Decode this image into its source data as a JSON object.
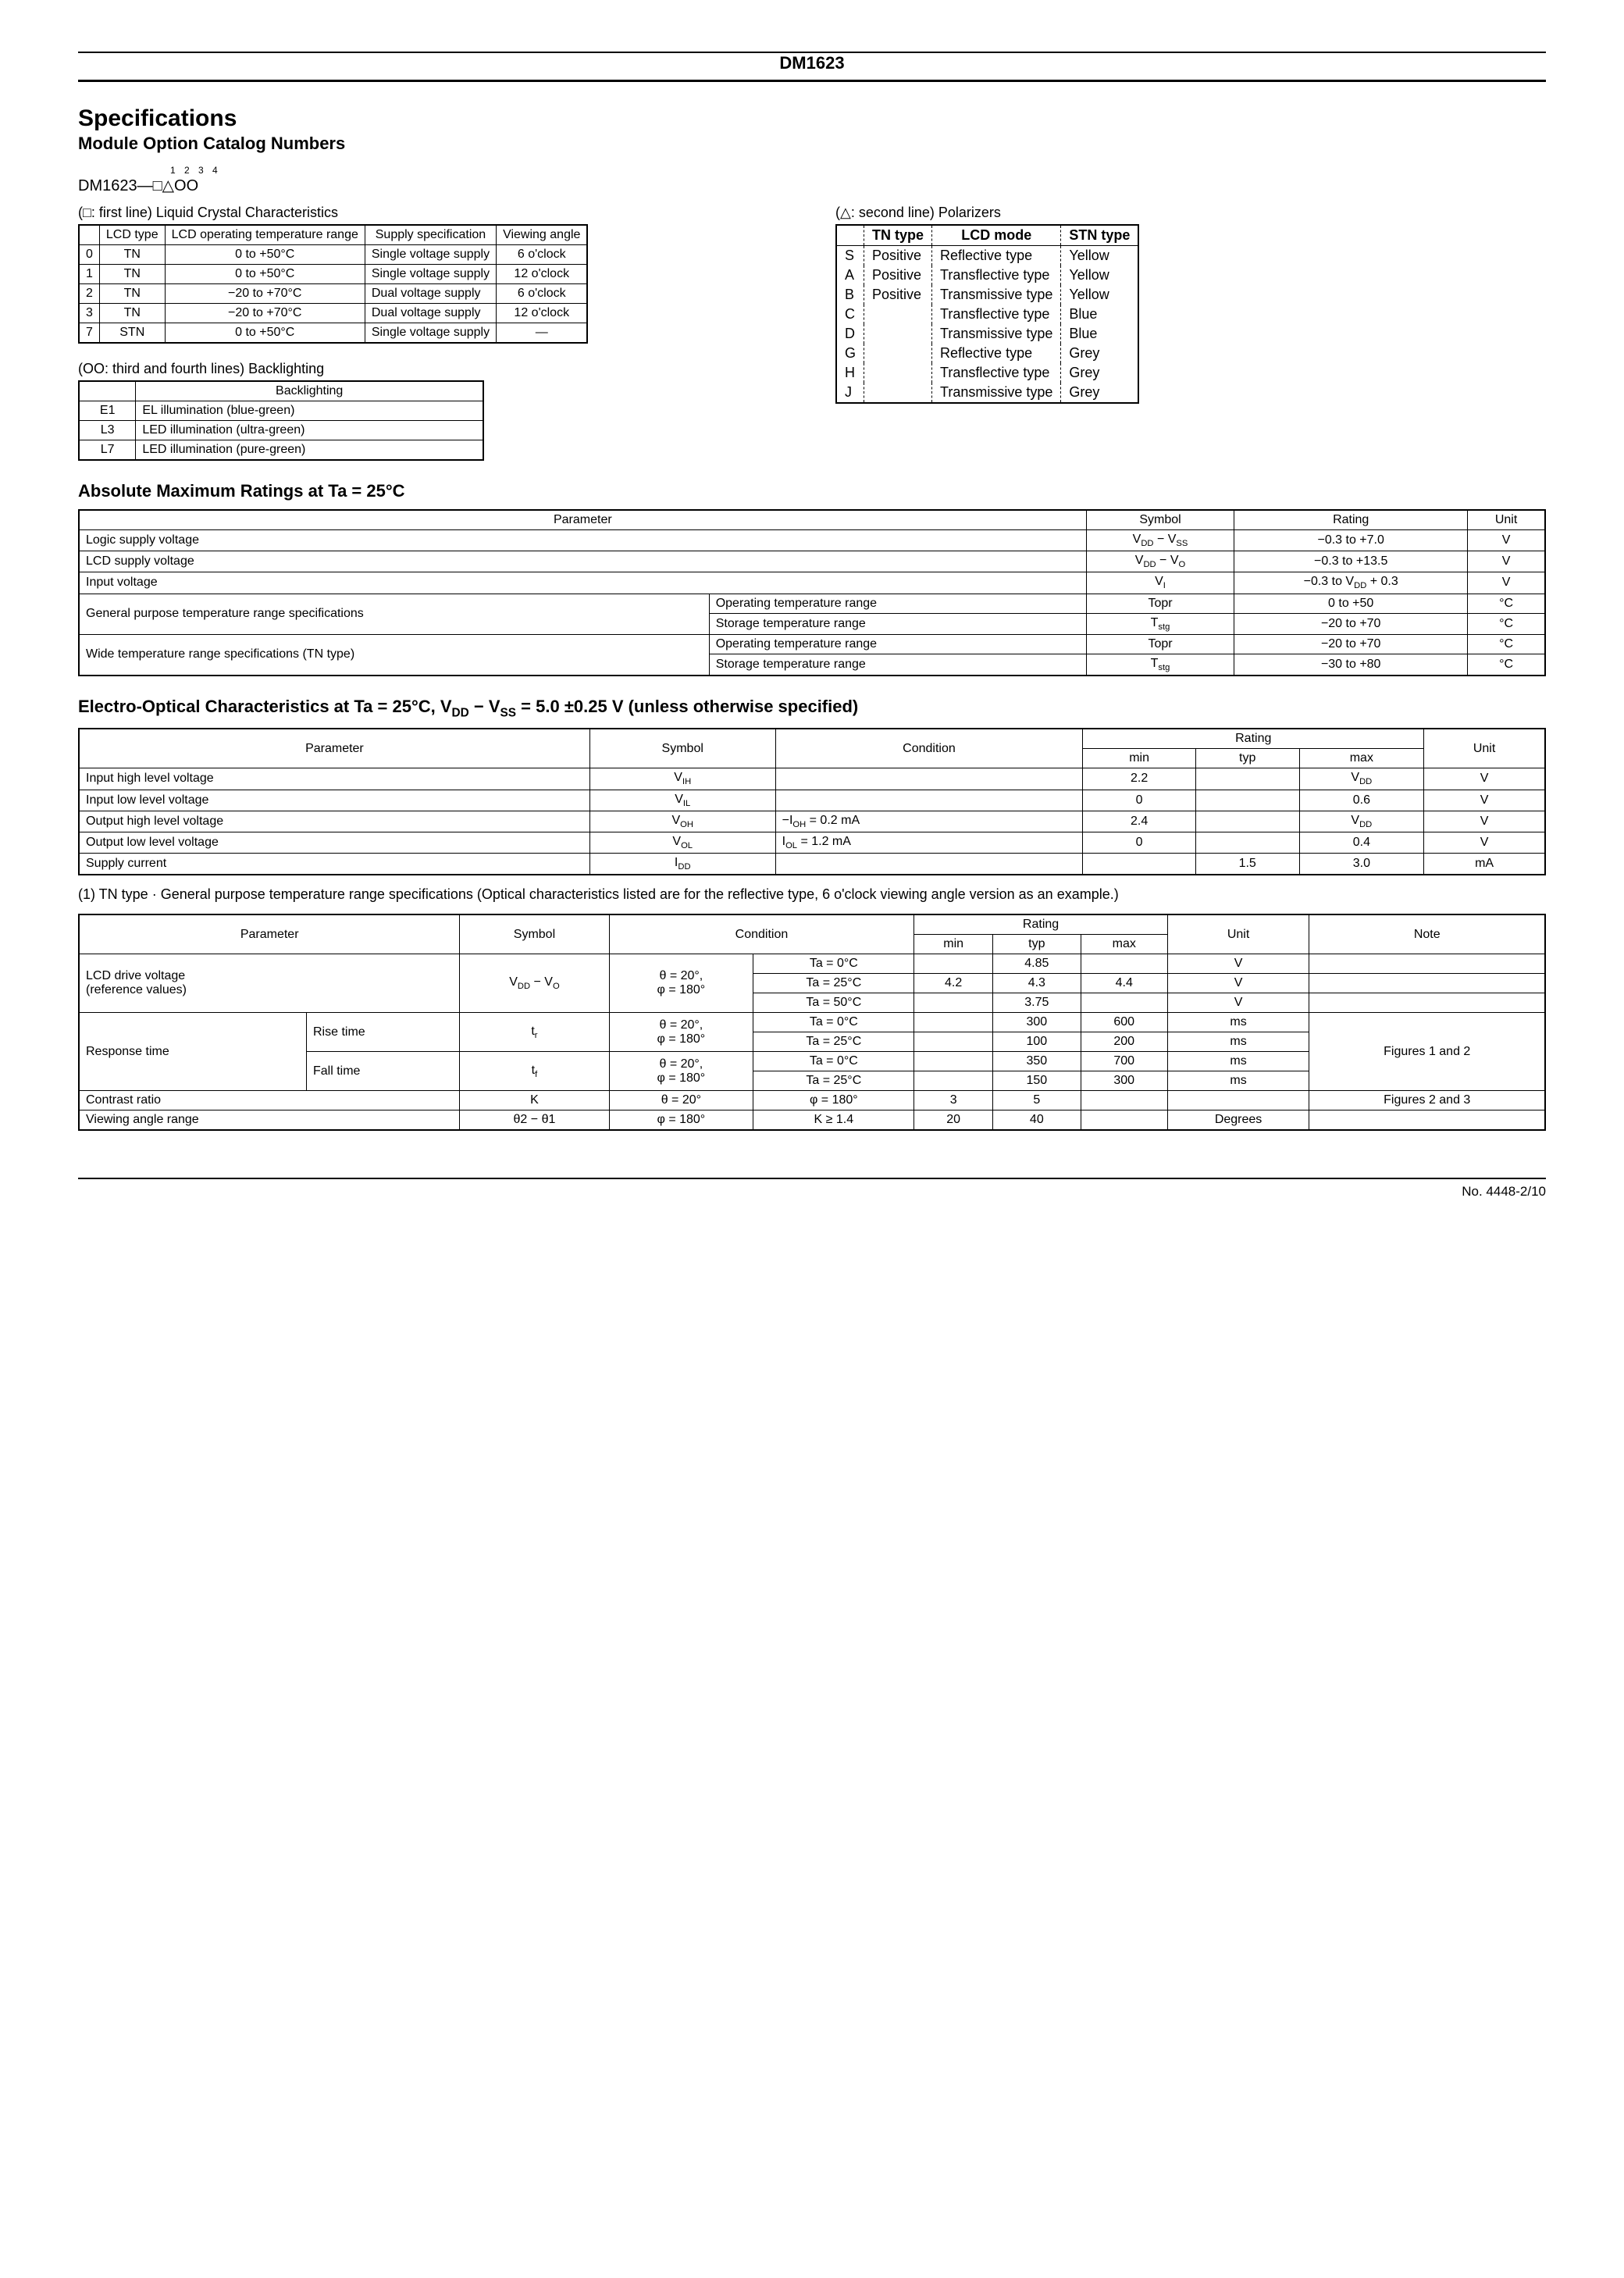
{
  "header": "DM1623",
  "title1": "Specifications",
  "title2": "Module Option Catalog Numbers",
  "partTop": "1 2 3 4",
  "partNo": "DM1623—□△OO",
  "lcc": {
    "label": "(□: first line) Liquid Crystal Characteristics",
    "headers": [
      "",
      "LCD type",
      "LCD operating temperature range",
      "Supply specification",
      "Viewing angle"
    ],
    "rows": [
      [
        "0",
        "TN",
        "0 to +50°C",
        "Single voltage supply",
        "6 o'clock"
      ],
      [
        "1",
        "TN",
        "0 to +50°C",
        "Single voltage supply",
        "12 o'clock"
      ],
      [
        "2",
        "TN",
        "−20 to +70°C",
        "Dual voltage supply",
        "6 o'clock"
      ],
      [
        "3",
        "TN",
        "−20 to +70°C",
        "Dual voltage supply",
        "12 o'clock"
      ],
      [
        "7",
        "STN",
        "0 to +50°C",
        "Single voltage supply",
        "—"
      ]
    ]
  },
  "polarizers": {
    "label": "(△: second line) Polarizers",
    "headers": [
      "",
      "TN type",
      "LCD mode",
      "STN type"
    ],
    "rows": [
      [
        "S",
        "Positive",
        "Reflective type",
        "Yellow"
      ],
      [
        "A",
        "Positive",
        "Transflective type",
        "Yellow"
      ],
      [
        "B",
        "Positive",
        "Transmissive type",
        "Yellow"
      ],
      [
        "C",
        "",
        "Transflective type",
        "Blue"
      ],
      [
        "D",
        "",
        "Transmissive type",
        "Blue"
      ],
      [
        "G",
        "",
        "Reflective type",
        "Grey"
      ],
      [
        "H",
        "",
        "Transflective type",
        "Grey"
      ],
      [
        "J",
        "",
        "Transmissive type",
        "Grey"
      ]
    ]
  },
  "backlighting": {
    "label": "(OO: third and fourth lines) Backlighting",
    "header": "Backlighting",
    "rows": [
      [
        "E1",
        "EL illumination (blue-green)"
      ],
      [
        "L3",
        "LED illumination (ultra-green)"
      ],
      [
        "L7",
        "LED illumination (pure-green)"
      ]
    ]
  },
  "abs": {
    "title": "Absolute Maximum Ratings at Ta = 25°C",
    "headers": [
      "Parameter",
      "Symbol",
      "Rating",
      "Unit"
    ],
    "rows": [
      {
        "param": "Logic supply voltage",
        "sub": "",
        "symbol": "V<sub>DD</sub> − V<sub>SS</sub>",
        "rating": "−0.3 to +7.0",
        "unit": "V"
      },
      {
        "param": "LCD supply voltage",
        "sub": "",
        "symbol": "V<sub>DD</sub> − V<sub>O</sub>",
        "rating": "−0.3 to +13.5",
        "unit": "V"
      },
      {
        "param": "Input voltage",
        "sub": "",
        "symbol": "V<sub>I</sub>",
        "rating": "−0.3 to V<sub>DD</sub> + 0.3",
        "unit": "V"
      },
      {
        "param": "General purpose temperature range specifications",
        "sub": "Operating temperature range",
        "symbol": "Topr",
        "rating": "0 to +50",
        "unit": "°C"
      },
      {
        "param": "",
        "sub": "Storage temperature range",
        "symbol": "T<sub>stg</sub>",
        "rating": "−20 to +70",
        "unit": "°C"
      },
      {
        "param": "Wide temperature range specifications (TN type)",
        "sub": "Operating temperature range",
        "symbol": "Topr",
        "rating": "−20 to +70",
        "unit": "°C"
      },
      {
        "param": "",
        "sub": "Storage temperature range",
        "symbol": "T<sub>stg</sub>",
        "rating": "−30 to +80",
        "unit": "°C"
      }
    ]
  },
  "eo": {
    "title": "Electro-Optical Characteristics at Ta = 25°C, V<sub>DD</sub> − V<sub>SS</sub> = 5.0 ±0.25 V (unless otherwise specified)",
    "headers": [
      "Parameter",
      "Symbol",
      "Condition",
      "min",
      "typ",
      "max",
      "Unit"
    ],
    "rows": [
      [
        "Input high level voltage",
        "V<sub>IH</sub>",
        "",
        "2.2",
        "",
        "V<sub>DD</sub>",
        "V"
      ],
      [
        "Input low level voltage",
        "V<sub>IL</sub>",
        "",
        "0",
        "",
        "0.6",
        "V"
      ],
      [
        "Output high level voltage",
        "V<sub>OH</sub>",
        "−I<sub>OH</sub> = 0.2 mA",
        "2.4",
        "",
        "V<sub>DD</sub>",
        "V"
      ],
      [
        "Output low level voltage",
        "V<sub>OL</sub>",
        "I<sub>OL</sub> = 1.2 mA",
        "0",
        "",
        "0.4",
        "V"
      ],
      [
        "Supply current",
        "I<sub>DD</sub>",
        "",
        "",
        "1.5",
        "3.0",
        "mA"
      ]
    ]
  },
  "tn_note": "(1) TN type · General purpose temperature range specifications (Optical characteristics listed are for the reflective type, 6 o'clock viewing angle version as an example.)",
  "tn": {
    "headers": [
      "Parameter",
      "Symbol",
      "Condition",
      "min",
      "typ",
      "max",
      "Unit",
      "Note"
    ]
  },
  "footer": "No. 4448-2/10"
}
